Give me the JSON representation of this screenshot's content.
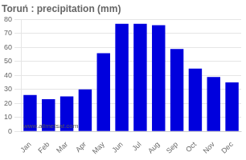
{
  "chart_data": {
    "type": "bar",
    "title": "Toruń : precipitation (mm)",
    "categories": [
      "Jan",
      "Feb",
      "Mar",
      "Apr",
      "May",
      "Jun",
      "Jul",
      "Aug",
      "Sep",
      "Oct",
      "Nov",
      "Dec"
    ],
    "values": [
      26,
      23,
      25,
      30,
      56,
      77,
      77,
      76,
      59,
      45,
      39,
      35
    ],
    "color": "#0000dd",
    "ylim": [
      0,
      80
    ],
    "yticks": [
      0,
      10,
      20,
      30,
      40,
      50,
      60,
      70,
      80
    ],
    "grid": true,
    "annotation": "www.allmetsat.com"
  }
}
